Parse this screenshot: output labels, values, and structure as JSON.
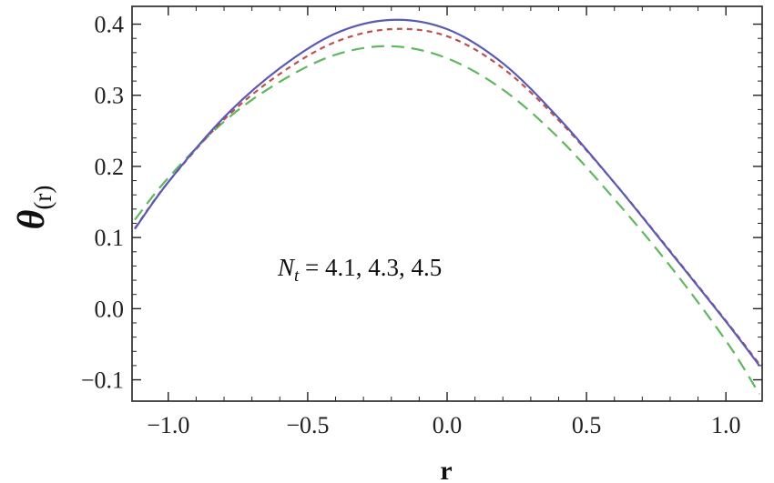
{
  "chart_data": {
    "type": "line",
    "xlabel": "r",
    "ylabel": {
      "main": "θ",
      "sub": "(r)"
    },
    "xlim": [
      -1.13,
      1.13
    ],
    "ylim": [
      -0.13,
      0.425
    ],
    "xticks": [
      -1.0,
      -0.5,
      0.0,
      0.5,
      1.0
    ],
    "xtick_labels": [
      "−1.0",
      "−0.5",
      "0.0",
      "0.5",
      "1.0"
    ],
    "yticks": [
      -0.1,
      0.0,
      0.1,
      0.2,
      0.3,
      0.4
    ],
    "ytick_labels": [
      "−0.1",
      "0.0",
      "0.1",
      "0.2",
      "0.3",
      "0.4"
    ],
    "grid": false,
    "annotation": {
      "symbol": "N",
      "sub": "t",
      "text": " = 4.1,  4.3,  4.5"
    },
    "series": [
      {
        "color": "#5a5ab4",
        "dash": "solid",
        "x": [
          -1.12,
          -1.0,
          -0.8,
          -0.6,
          -0.4,
          -0.2,
          0.0,
          0.2,
          0.4,
          0.6,
          0.8,
          1.0,
          1.12
        ],
        "y": [
          0.112,
          0.178,
          0.269,
          0.338,
          0.387,
          0.406,
          0.393,
          0.345,
          0.268,
          0.177,
          0.08,
          -0.018,
          -0.08
        ]
      },
      {
        "color": "#c0504d",
        "dash": "short",
        "x": [
          -1.12,
          -1.0,
          -0.8,
          -0.6,
          -0.4,
          -0.2,
          0.0,
          0.2,
          0.4,
          0.6,
          0.8,
          1.0,
          1.12
        ],
        "y": [
          0.113,
          0.178,
          0.266,
          0.33,
          0.375,
          0.393,
          0.383,
          0.338,
          0.265,
          0.177,
          0.081,
          -0.017,
          -0.078
        ]
      },
      {
        "color": "#5fb85f",
        "dash": "long",
        "x": [
          -1.12,
          -1.0,
          -0.8,
          -0.6,
          -0.4,
          -0.2,
          0.0,
          0.2,
          0.4,
          0.6,
          0.8,
          1.0,
          1.12
        ],
        "y": [
          0.125,
          0.184,
          0.263,
          0.319,
          0.357,
          0.369,
          0.352,
          0.308,
          0.24,
          0.154,
          0.06,
          -0.045,
          -0.12
        ]
      }
    ]
  }
}
